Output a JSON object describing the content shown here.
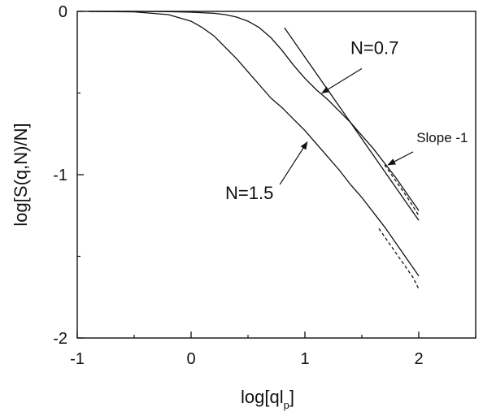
{
  "chart_data": {
    "type": "line",
    "xlabel": "log[ql",
    "xlabel_sub": "p",
    "xlabel_close": "]",
    "ylabel": "log[S(q,N)/N]",
    "xlim": [
      -1,
      2.5
    ],
    "ylim": [
      -2,
      0
    ],
    "xticks": [
      -1,
      0,
      1,
      2
    ],
    "xtick_labels": [
      "-1",
      "0",
      "1",
      "2"
    ],
    "yticks": [
      0,
      -1,
      -2
    ],
    "ytick_labels": [
      "0",
      "-1",
      "-2"
    ],
    "grid": false,
    "series": [
      {
        "name": "N=0.7",
        "style": "solid",
        "x": [
          -0.9,
          -0.5,
          -0.2,
          0.0,
          0.2,
          0.3,
          0.4,
          0.5,
          0.6,
          0.7,
          0.8,
          0.9,
          1.0,
          1.1,
          1.2,
          1.3,
          1.4,
          1.5,
          1.6,
          1.7,
          1.8,
          1.9,
          2.0
        ],
        "y": [
          0.0,
          0.0,
          -0.002,
          -0.005,
          -0.012,
          -0.02,
          -0.035,
          -0.06,
          -0.1,
          -0.16,
          -0.24,
          -0.33,
          -0.41,
          -0.48,
          -0.54,
          -0.61,
          -0.68,
          -0.76,
          -0.84,
          -0.93,
          -1.02,
          -1.12,
          -1.22
        ]
      },
      {
        "name": "N=0.7 asymptote",
        "style": "dashed",
        "x": [
          1.7,
          1.8,
          1.9,
          2.0
        ],
        "y": [
          -0.94,
          -1.04,
          -1.14,
          -1.25
        ]
      },
      {
        "name": "N=1.5",
        "style": "solid",
        "x": [
          -0.9,
          -0.5,
          -0.2,
          0.0,
          0.1,
          0.2,
          0.3,
          0.4,
          0.5,
          0.6,
          0.7,
          0.8,
          0.9,
          1.0,
          1.1,
          1.2,
          1.3,
          1.4,
          1.5,
          1.6,
          1.7,
          1.8,
          1.9,
          2.0
        ],
        "y": [
          0.0,
          -0.003,
          -0.02,
          -0.06,
          -0.1,
          -0.15,
          -0.22,
          -0.29,
          -0.37,
          -0.45,
          -0.53,
          -0.59,
          -0.66,
          -0.73,
          -0.81,
          -0.89,
          -0.97,
          -1.06,
          -1.14,
          -1.23,
          -1.32,
          -1.42,
          -1.52,
          -1.62
        ]
      },
      {
        "name": "N=1.5 asymptote",
        "style": "dashed",
        "x": [
          1.65,
          1.75,
          1.85,
          1.95,
          2.0
        ],
        "y": [
          -1.33,
          -1.43,
          -1.53,
          -1.63,
          -1.7
        ]
      },
      {
        "name": "Slope -1 line",
        "style": "solid",
        "x": [
          0.82,
          2.0
        ],
        "y": [
          -0.1,
          -1.28
        ]
      }
    ],
    "annotations": [
      {
        "text": "N=0.7",
        "x": 1.4,
        "y": -0.26
      },
      {
        "text": "N=1.5",
        "x": 0.3,
        "y": -1.15
      },
      {
        "text": "Slope -1",
        "x": 1.98,
        "y": -0.8
      }
    ],
    "arrows": [
      {
        "from": [
          1.5,
          -0.35
        ],
        "to": [
          1.15,
          -0.5
        ]
      },
      {
        "from": [
          0.78,
          -1.06
        ],
        "to": [
          1.02,
          -0.8
        ]
      },
      {
        "from": [
          1.95,
          -0.86
        ],
        "to": [
          1.73,
          -0.94
        ]
      }
    ]
  }
}
